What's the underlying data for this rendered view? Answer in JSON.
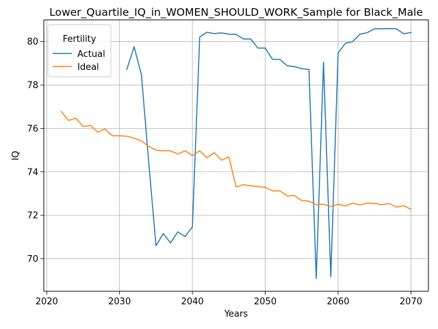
{
  "chart_data": {
    "type": "line",
    "title": "Lower_Quartile_IQ_in_WOMEN_SHOULD_WORK_Sample for Black_Male",
    "xlabel": "Years",
    "ylabel": "IQ",
    "xlim": [
      2019.6,
      2072.4
    ],
    "ylim": [
      68.5,
      81.0
    ],
    "xticks": [
      2020,
      2030,
      2040,
      2050,
      2060,
      2070
    ],
    "yticks": [
      70,
      72,
      74,
      76,
      78,
      80
    ],
    "grid": true,
    "legend": {
      "title": "Fertility",
      "placement": "upper-left"
    },
    "series": [
      {
        "name": "Actual",
        "color": "#1f77b4",
        "x": [
          2031,
          2032,
          2033,
          2034,
          2035,
          2036,
          2037,
          2038,
          2039,
          2040,
          2041,
          2042,
          2043,
          2044,
          2045,
          2046,
          2047,
          2048,
          2049,
          2050,
          2051,
          2052,
          2053,
          2054,
          2055,
          2056,
          2057,
          2058,
          2059,
          2060,
          2061,
          2062,
          2063,
          2064,
          2065,
          2066,
          2067,
          2068,
          2069,
          2070
        ],
        "values": [
          78.72,
          79.76,
          78.48,
          74.45,
          70.6,
          71.16,
          70.73,
          71.24,
          71.02,
          71.47,
          80.21,
          80.43,
          80.37,
          80.4,
          80.34,
          80.33,
          80.12,
          80.12,
          79.7,
          79.7,
          79.18,
          79.18,
          78.89,
          78.85,
          78.75,
          78.72,
          69.09,
          79.06,
          69.17,
          79.48,
          79.92,
          80.0,
          80.34,
          80.41,
          80.59,
          80.59,
          80.6,
          80.59,
          80.36,
          80.42
        ]
      },
      {
        "name": "Ideal",
        "color": "#ff7f0e",
        "x": [
          2022,
          2023,
          2024,
          2025,
          2026,
          2027,
          2028,
          2029,
          2030,
          2031,
          2032,
          2033,
          2034,
          2035,
          2036,
          2037,
          2038,
          2039,
          2040,
          2041,
          2042,
          2043,
          2044,
          2045,
          2046,
          2047,
          2048,
          2049,
          2050,
          2051,
          2052,
          2053,
          2054,
          2055,
          2056,
          2057,
          2058,
          2059,
          2060,
          2061,
          2062,
          2063,
          2064,
          2065,
          2066,
          2067,
          2068,
          2069,
          2070
        ],
        "values": [
          76.78,
          76.37,
          76.47,
          76.09,
          76.14,
          75.83,
          75.97,
          75.67,
          75.66,
          75.64,
          75.55,
          75.43,
          75.17,
          75.0,
          74.97,
          74.97,
          74.82,
          74.97,
          74.75,
          74.97,
          74.65,
          74.88,
          74.54,
          74.69,
          73.31,
          73.41,
          73.36,
          73.32,
          73.29,
          73.12,
          73.13,
          72.89,
          72.91,
          72.68,
          72.65,
          72.49,
          72.51,
          72.4,
          72.51,
          72.43,
          72.56,
          72.48,
          72.56,
          72.55,
          72.49,
          72.54,
          72.38,
          72.44,
          72.28
        ]
      }
    ]
  }
}
